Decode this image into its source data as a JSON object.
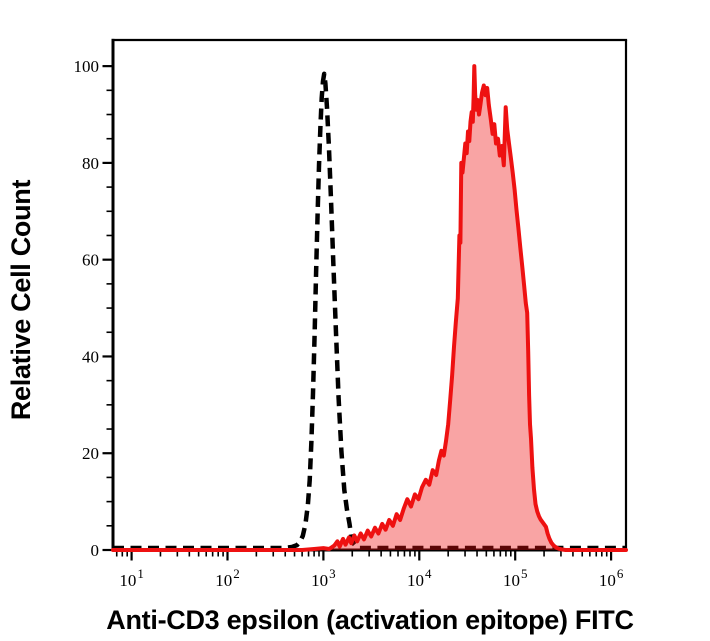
{
  "chart_data": {
    "type": "area",
    "subtype": "flow-cytometry-overlay-histogram",
    "title": "",
    "xlabel": "Anti-CD3 epsilon (activation epitope) FITC",
    "ylabel": "Relative Cell Count",
    "x_scale": "log",
    "xlim": [
      6.4,
      1430000
    ],
    "ylim": [
      0,
      105.4
    ],
    "x_ticks": [
      {
        "value": 10,
        "base": "10",
        "exp": "1"
      },
      {
        "value": 100,
        "base": "10",
        "exp": "2"
      },
      {
        "value": 1000,
        "base": "10",
        "exp": "3"
      },
      {
        "value": 10000,
        "base": "10",
        "exp": "4"
      },
      {
        "value": 100000,
        "base": "10",
        "exp": "5"
      },
      {
        "value": 1000000,
        "base": "10",
        "exp": "6"
      }
    ],
    "x_minor_ticks": "log multiples 2-9 per decade",
    "y_ticks": [
      0,
      20,
      40,
      60,
      80,
      100
    ],
    "y_minor_step": 5,
    "grid": false,
    "legend": "none",
    "colors": {
      "axis": "#000000",
      "control_dash": "#000000",
      "sample_stroke": "#ee1111",
      "sample_fill": "rgba(238,17,17,0.38)"
    },
    "series": [
      {
        "name": "control-dashed",
        "style": "dashed",
        "color": "#000000",
        "peak_x": 1020,
        "peak_y": 98,
        "points": [
          [
            6.4,
            0
          ],
          [
            60,
            0
          ],
          [
            200,
            0
          ],
          [
            380,
            0
          ],
          [
            470,
            0.2
          ],
          [
            530,
            0.6
          ],
          [
            570,
            1.3
          ],
          [
            610,
            2.5
          ],
          [
            650,
            5
          ],
          [
            690,
            9
          ],
          [
            720,
            14
          ],
          [
            750,
            22
          ],
          [
            780,
            32
          ],
          [
            810,
            44
          ],
          [
            840,
            57
          ],
          [
            870,
            69
          ],
          [
            900,
            79
          ],
          [
            930,
            87
          ],
          [
            960,
            93
          ],
          [
            990,
            96.5
          ],
          [
            1020,
            98
          ],
          [
            1050,
            96
          ],
          [
            1090,
            91
          ],
          [
            1140,
            83
          ],
          [
            1200,
            72
          ],
          [
            1270,
            59
          ],
          [
            1350,
            45
          ],
          [
            1440,
            31
          ],
          [
            1540,
            20
          ],
          [
            1650,
            12
          ],
          [
            1760,
            8
          ],
          [
            1870,
            5
          ],
          [
            1950,
            2.5
          ],
          [
            2050,
            1
          ],
          [
            2200,
            0.3
          ],
          [
            2400,
            0
          ],
          [
            5000,
            0
          ],
          [
            50000,
            0
          ],
          [
            500000,
            0
          ],
          [
            1430000,
            0
          ]
        ]
      },
      {
        "name": "sample-red-filled",
        "style": "solid-filled",
        "color": "#ee1111",
        "fill": "rgba(238,17,17,0.38)",
        "peak_x": 37500,
        "peak_y": 100,
        "points": [
          [
            6.4,
            0
          ],
          [
            600,
            0
          ],
          [
            800,
            0.2
          ],
          [
            1000,
            0.4
          ],
          [
            1150,
            0.2
          ],
          [
            1300,
            0.9
          ],
          [
            1400,
            1.8
          ],
          [
            1480,
            0.7
          ],
          [
            1600,
            2.3
          ],
          [
            1700,
            1.1
          ],
          [
            1850,
            2.6
          ],
          [
            1950,
            1.4
          ],
          [
            2100,
            3
          ],
          [
            2250,
            1.8
          ],
          [
            2450,
            3.4
          ],
          [
            2650,
            2.2
          ],
          [
            2900,
            4
          ],
          [
            3150,
            2.8
          ],
          [
            3450,
            4.6
          ],
          [
            3750,
            3.4
          ],
          [
            4100,
            5.4
          ],
          [
            4450,
            4.2
          ],
          [
            4850,
            6.2
          ],
          [
            5300,
            5
          ],
          [
            5800,
            7.4
          ],
          [
            6300,
            6.2
          ],
          [
            6900,
            8.6
          ],
          [
            7500,
            10.5
          ],
          [
            8200,
            9
          ],
          [
            9000,
            11.5
          ],
          [
            9800,
            10.5
          ],
          [
            10700,
            13
          ],
          [
            11700,
            14.5
          ],
          [
            12700,
            13.5
          ],
          [
            13800,
            16.5
          ],
          [
            15000,
            15.5
          ],
          [
            16000,
            18.5
          ],
          [
            17000,
            20.5
          ],
          [
            18000,
            19.5
          ],
          [
            19000,
            22.5
          ],
          [
            20000,
            26
          ],
          [
            21000,
            31
          ],
          [
            22000,
            36
          ],
          [
            23000,
            42
          ],
          [
            24000,
            47
          ],
          [
            25200,
            52
          ],
          [
            26200,
            65
          ],
          [
            26800,
            63.5
          ],
          [
            27400,
            80
          ],
          [
            28200,
            78
          ],
          [
            29200,
            81
          ],
          [
            30200,
            84
          ],
          [
            31200,
            82
          ],
          [
            32200,
            86.5
          ],
          [
            33200,
            84.5
          ],
          [
            34200,
            88.5
          ],
          [
            35200,
            90.5
          ],
          [
            36100,
            88.5
          ],
          [
            36800,
            93.5
          ],
          [
            37500,
            100
          ],
          [
            38300,
            94
          ],
          [
            39300,
            91
          ],
          [
            40400,
            93
          ],
          [
            41900,
            90
          ],
          [
            43400,
            92
          ],
          [
            45100,
            94.5
          ],
          [
            47100,
            96
          ],
          [
            49100,
            94
          ],
          [
            51100,
            95.5
          ],
          [
            53100,
            92
          ],
          [
            55600,
            89
          ],
          [
            58100,
            86
          ],
          [
            60600,
            88
          ],
          [
            63100,
            84
          ],
          [
            66100,
            85
          ],
          [
            69100,
            81.5
          ],
          [
            72600,
            83.5
          ],
          [
            76100,
            79.5
          ],
          [
            79600,
            91.5
          ],
          [
            82600,
            87
          ],
          [
            86100,
            84
          ],
          [
            90100,
            81
          ],
          [
            94100,
            78
          ],
          [
            98600,
            74.5
          ],
          [
            103000,
            70.5
          ],
          [
            108000,
            66.5
          ],
          [
            113000,
            62.5
          ],
          [
            118500,
            58.5
          ],
          [
            124000,
            54.5
          ],
          [
            129000,
            51
          ],
          [
            133500,
            49
          ],
          [
            136500,
            41
          ],
          [
            139500,
            32
          ],
          [
            142500,
            26
          ],
          [
            146000,
            23
          ],
          [
            151000,
            17
          ],
          [
            157000,
            12.5
          ],
          [
            163000,
            9.5
          ],
          [
            169500,
            8
          ],
          [
            176500,
            7
          ],
          [
            184000,
            6.3
          ],
          [
            192000,
            5.8
          ],
          [
            200500,
            5.3
          ],
          [
            209000,
            4.8
          ],
          [
            217500,
            3.4
          ],
          [
            227000,
            2.4
          ],
          [
            238500,
            1.5
          ],
          [
            252000,
            0.9
          ],
          [
            268000,
            0.5
          ],
          [
            287000,
            0.25
          ],
          [
            308000,
            0.1
          ],
          [
            335000,
            0
          ],
          [
            700000,
            0
          ],
          [
            1430000,
            0
          ]
        ]
      }
    ]
  }
}
